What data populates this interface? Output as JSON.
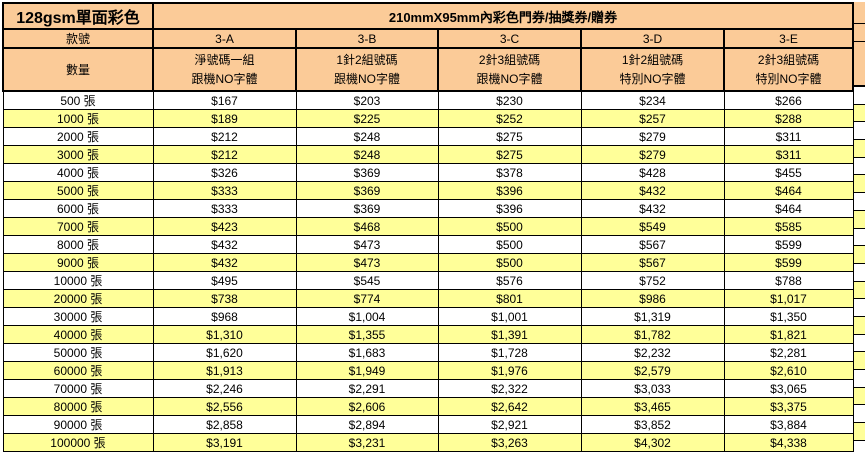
{
  "header": {
    "product": "128gsm單面彩色",
    "spec": "210mmX95mm內彩色門券/抽獎券/贈券",
    "model_label": "款號",
    "quantity_label": "數量"
  },
  "columns": [
    {
      "code": "3-A",
      "desc_line1": "淨號碼一組",
      "desc_line2": "跟機NO字體"
    },
    {
      "code": "3-B",
      "desc_line1": "1針2組號碼",
      "desc_line2": "跟機NO字體"
    },
    {
      "code": "3-C",
      "desc_line1": "2針3組號碼",
      "desc_line2": "跟機NO字體"
    },
    {
      "code": "3-D",
      "desc_line1": "1針2組號碼",
      "desc_line2": "特別NO字體"
    },
    {
      "code": "3-E",
      "desc_line1": "2針3組號碼",
      "desc_line2": "特別NO字體"
    }
  ],
  "colors": {
    "header_fill": "#FBCB98",
    "highlight_fill": "#FFFF99",
    "row_fill": "#FFFFFF",
    "border": "#000000"
  },
  "rows": [
    {
      "qty": "500 張",
      "prices": [
        "$167",
        "$203",
        "$230",
        "$234",
        "$266"
      ],
      "highlight": false
    },
    {
      "qty": "1000 張",
      "prices": [
        "$189",
        "$225",
        "$252",
        "$257",
        "$288"
      ],
      "highlight": true
    },
    {
      "qty": "2000 張",
      "prices": [
        "$212",
        "$248",
        "$275",
        "$279",
        "$311"
      ],
      "highlight": false
    },
    {
      "qty": "3000 張",
      "prices": [
        "$212",
        "$248",
        "$275",
        "$279",
        "$311"
      ],
      "highlight": true
    },
    {
      "qty": "4000 張",
      "prices": [
        "$326",
        "$369",
        "$378",
        "$428",
        "$455"
      ],
      "highlight": false
    },
    {
      "qty": "5000 張",
      "prices": [
        "$333",
        "$369",
        "$396",
        "$432",
        "$464"
      ],
      "highlight": true
    },
    {
      "qty": "6000 張",
      "prices": [
        "$333",
        "$369",
        "$396",
        "$432",
        "$464"
      ],
      "highlight": false
    },
    {
      "qty": "7000 張",
      "prices": [
        "$423",
        "$468",
        "$500",
        "$549",
        "$585"
      ],
      "highlight": true
    },
    {
      "qty": "8000 張",
      "prices": [
        "$432",
        "$473",
        "$500",
        "$567",
        "$599"
      ],
      "highlight": false
    },
    {
      "qty": "9000 張",
      "prices": [
        "$432",
        "$473",
        "$500",
        "$567",
        "$599"
      ],
      "highlight": true
    },
    {
      "qty": "10000 張",
      "prices": [
        "$495",
        "$545",
        "$576",
        "$752",
        "$788"
      ],
      "highlight": false
    },
    {
      "qty": "20000 張",
      "prices": [
        "$738",
        "$774",
        "$801",
        "$986",
        "$1,017"
      ],
      "highlight": true
    },
    {
      "qty": "30000 張",
      "prices": [
        "$968",
        "$1,004",
        "$1,001",
        "$1,319",
        "$1,350"
      ],
      "highlight": false
    },
    {
      "qty": "40000 張",
      "prices": [
        "$1,310",
        "$1,355",
        "$1,391",
        "$1,782",
        "$1,821"
      ],
      "highlight": true
    },
    {
      "qty": "50000 張",
      "prices": [
        "$1,620",
        "$1,683",
        "$1,728",
        "$2,232",
        "$2,281"
      ],
      "highlight": false
    },
    {
      "qty": "60000 張",
      "prices": [
        "$1,913",
        "$1,949",
        "$1,976",
        "$2,579",
        "$2,610"
      ],
      "highlight": true
    },
    {
      "qty": "70000 張",
      "prices": [
        "$2,246",
        "$2,291",
        "$2,322",
        "$3,033",
        "$3,065"
      ],
      "highlight": false
    },
    {
      "qty": "80000 張",
      "prices": [
        "$2,556",
        "$2,606",
        "$2,642",
        "$3,465",
        "$3,375"
      ],
      "highlight": true
    },
    {
      "qty": "90000 張",
      "prices": [
        "$2,858",
        "$2,894",
        "$2,921",
        "$3,852",
        "$3,884"
      ],
      "highlight": false
    },
    {
      "qty": "100000 張",
      "prices": [
        "$3,191",
        "$3,231",
        "$3,263",
        "$4,302",
        "$4,338"
      ],
      "highlight": true
    }
  ]
}
